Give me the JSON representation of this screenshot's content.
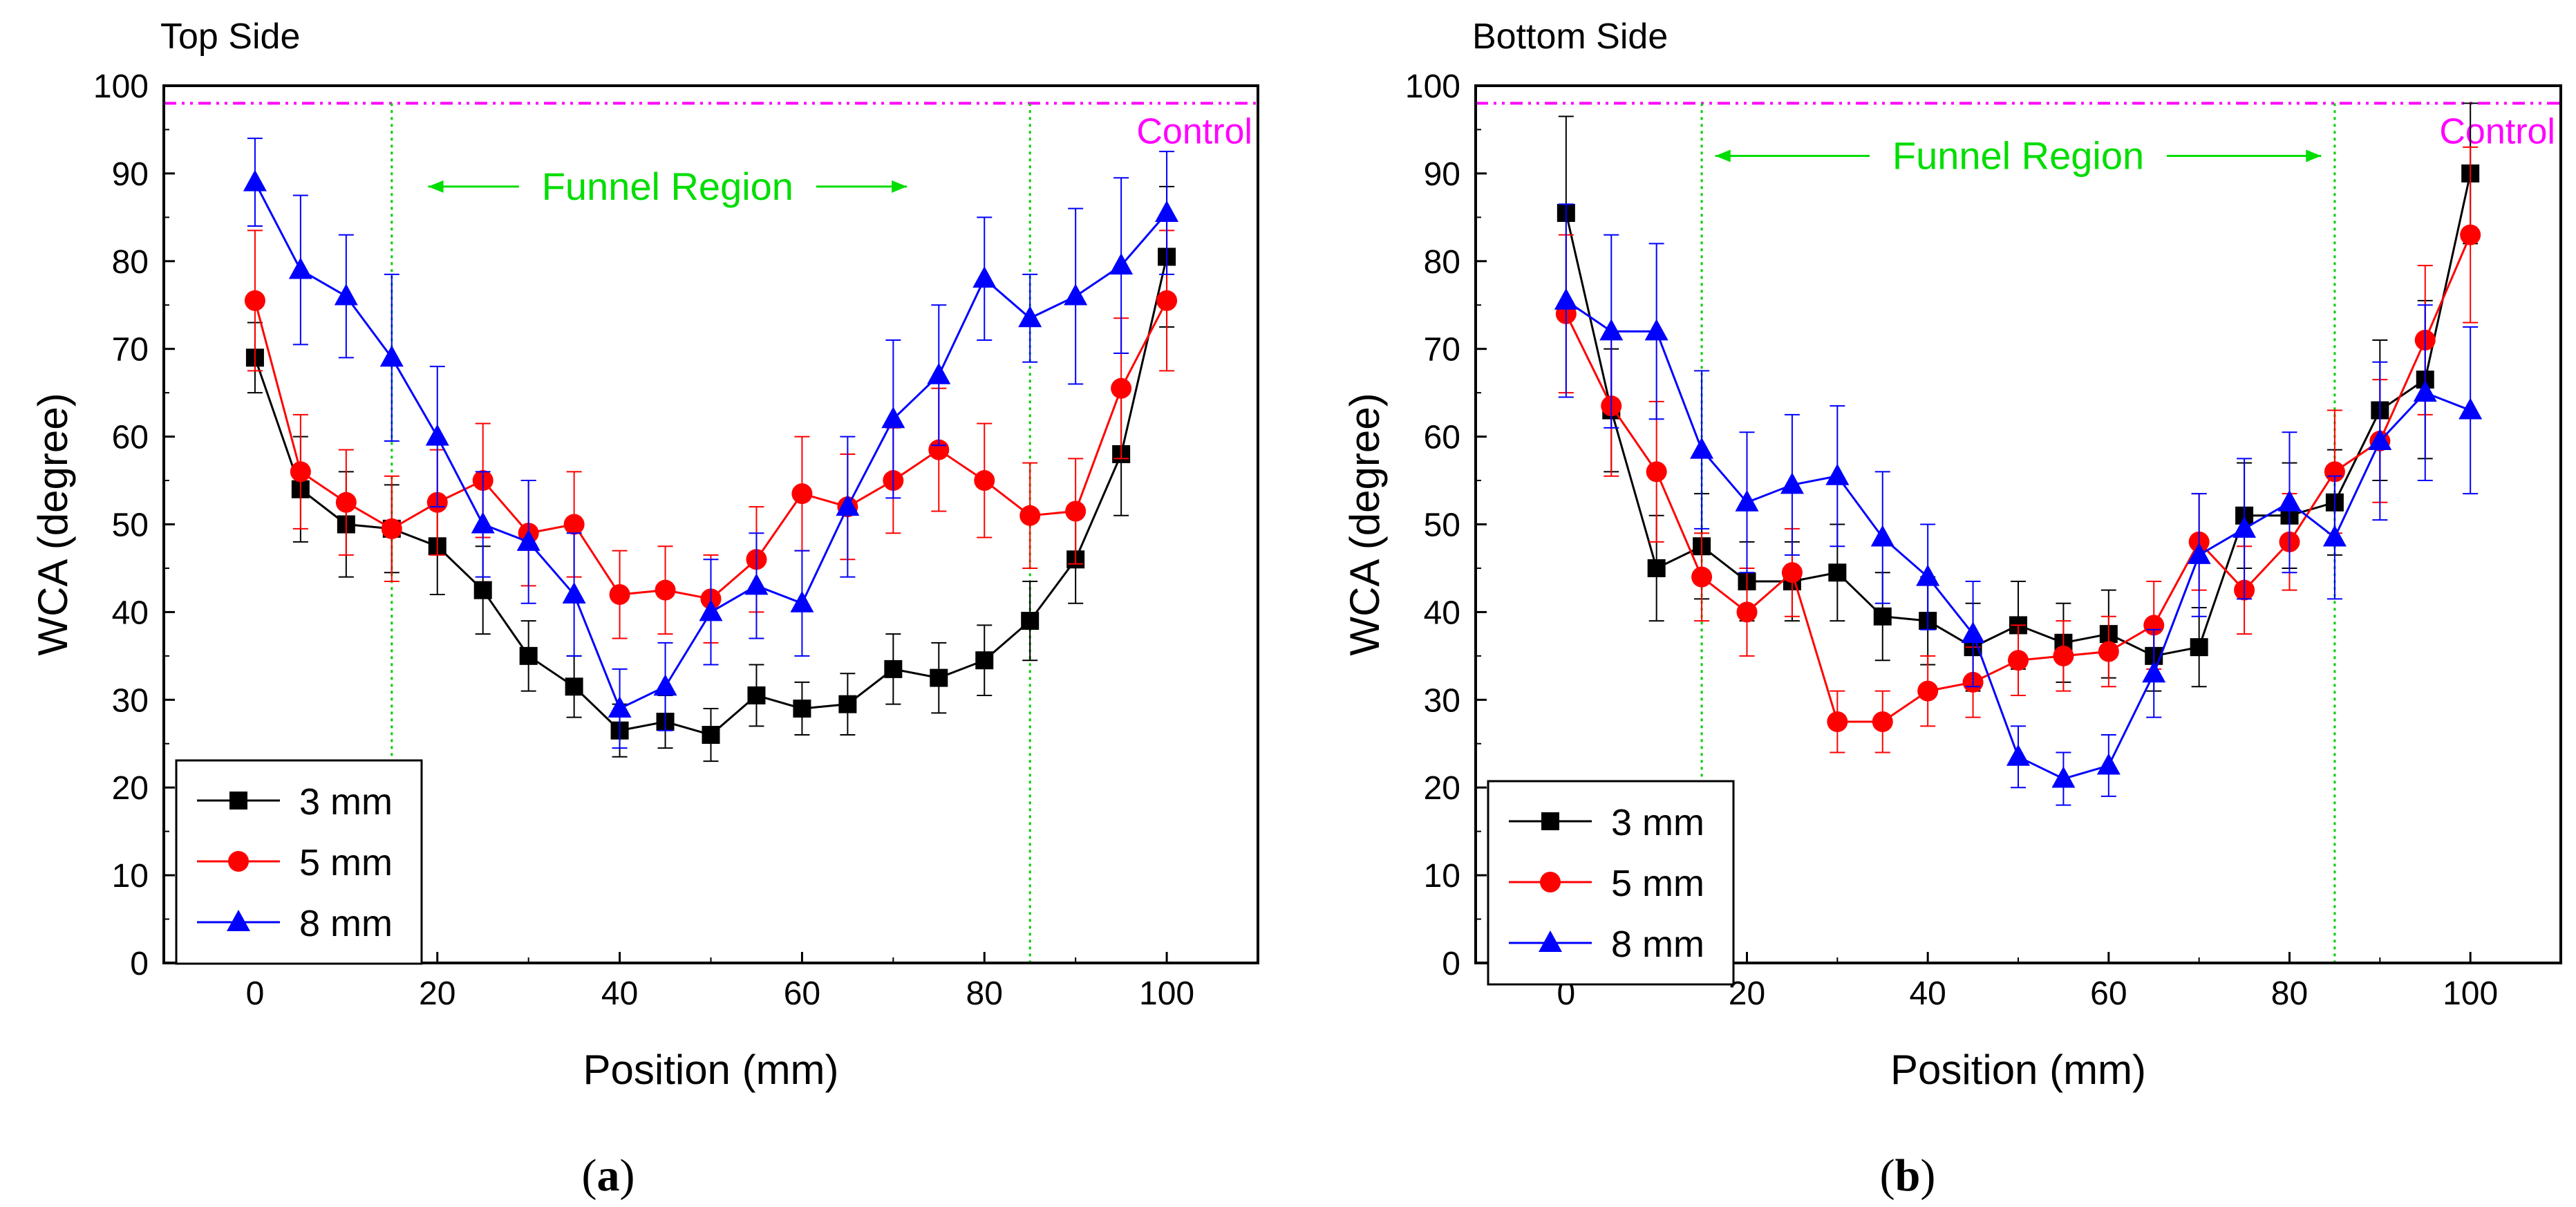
{
  "chart_data": [
    {
      "type": "line",
      "panel_title": "Top Side",
      "caption_letter": "a",
      "xlabel": "Position (mm)",
      "ylabel": "WCA (degree)",
      "xlim": [
        -10,
        110
      ],
      "ylim": [
        0,
        100
      ],
      "xticks": [
        0,
        20,
        40,
        60,
        80,
        100
      ],
      "yticks": [
        0,
        10,
        20,
        30,
        40,
        50,
        60,
        70,
        80,
        90,
        100
      ],
      "control": {
        "label": "Control",
        "value": 98
      },
      "region": {
        "label": "Funnel Region",
        "start": 15,
        "end": 85
      },
      "legend_position": "bottom-left",
      "x": [
        0,
        5,
        10,
        15,
        20,
        25,
        30,
        35,
        40,
        45,
        50,
        55,
        60,
        65,
        70,
        75,
        80,
        85,
        90,
        95,
        100
      ],
      "series": [
        {
          "name": "3 mm",
          "color": "#000000",
          "marker": "square",
          "values": [
            69,
            54,
            50,
            49.5,
            47.5,
            42.5,
            35,
            31.5,
            26.5,
            27.5,
            26,
            30.5,
            29,
            29.5,
            33.5,
            32.5,
            34.5,
            39,
            46,
            58,
            80.5
          ],
          "errors": [
            4,
            6,
            6,
            5,
            5.5,
            5,
            4,
            3.5,
            3,
            3,
            3,
            3.5,
            3,
            3.5,
            4,
            4,
            4,
            4.5,
            5,
            7,
            8
          ]
        },
        {
          "name": "5 mm",
          "color": "#ff0000",
          "marker": "circle",
          "values": [
            75.5,
            56,
            52.5,
            49.5,
            52.5,
            55,
            49,
            50,
            42,
            42.5,
            41.5,
            46,
            53.5,
            52,
            55,
            58.5,
            55,
            51,
            51.5,
            65.5,
            75.5
          ],
          "errors": [
            8,
            6.5,
            6,
            6,
            6,
            6.5,
            6,
            6,
            5,
            5,
            5,
            6,
            6.5,
            6,
            6,
            7,
            6.5,
            6,
            6,
            8,
            8
          ]
        },
        {
          "name": "8 mm",
          "color": "#0000ff",
          "marker": "triangle",
          "values": [
            89,
            79,
            76,
            69,
            60,
            50,
            48,
            42,
            29,
            31.5,
            40,
            43,
            41,
            52,
            62,
            67,
            78,
            73.5,
            76,
            79.5,
            85.5
          ],
          "errors": [
            5,
            8.5,
            7,
            9.5,
            8,
            6,
            7,
            7,
            4.5,
            5,
            6,
            6,
            6,
            8,
            9,
            8,
            7,
            5,
            10,
            10,
            7
          ]
        }
      ]
    },
    {
      "type": "line",
      "panel_title": "Bottom Side",
      "caption_letter": "b",
      "xlabel": "Position (mm)",
      "ylabel": "WCA (degree)",
      "xlim": [
        -10,
        110
      ],
      "ylim": [
        0,
        100
      ],
      "xticks": [
        0,
        20,
        40,
        60,
        80,
        100
      ],
      "yticks": [
        0,
        10,
        20,
        30,
        40,
        50,
        60,
        70,
        80,
        90,
        100
      ],
      "control": {
        "label": "Control",
        "value": 98
      },
      "region": {
        "label": "Funnel Region",
        "start": 15,
        "end": 85
      },
      "legend_position": "bottom-left",
      "x": [
        0,
        5,
        10,
        15,
        20,
        25,
        30,
        35,
        40,
        45,
        50,
        55,
        60,
        65,
        70,
        75,
        80,
        85,
        90,
        95,
        100
      ],
      "series": [
        {
          "name": "3 mm",
          "color": "#000000",
          "marker": "square",
          "values": [
            85.5,
            63,
            45,
            47.5,
            43.5,
            43.5,
            44.5,
            39.5,
            39,
            36,
            38.5,
            36.5,
            37.5,
            35,
            36,
            51,
            51,
            52.5,
            63,
            66.5,
            90
          ],
          "errors": [
            11,
            7,
            6,
            6,
            4.5,
            4.5,
            5.5,
            5,
            5,
            5,
            5,
            4.5,
            5,
            4,
            4.5,
            6,
            6,
            6,
            8,
            9,
            8
          ]
        },
        {
          "name": "5 mm",
          "color": "#ff0000",
          "marker": "circle",
          "values": [
            74,
            63.5,
            56,
            44,
            40,
            44.5,
            27.5,
            27.5,
            31,
            32,
            34.5,
            35,
            35.5,
            38.5,
            48,
            42.5,
            48,
            56,
            59.5,
            71,
            83
          ],
          "errors": [
            9,
            8,
            8,
            5,
            5,
            5,
            3.5,
            3.5,
            4,
            4,
            4,
            4,
            4,
            5,
            5.5,
            5,
            5.5,
            7,
            7,
            8.5,
            10
          ]
        },
        {
          "name": "8 mm",
          "color": "#0000ff",
          "marker": "triangle",
          "values": [
            75.5,
            72,
            72,
            58.5,
            52.5,
            54.5,
            55.5,
            48.5,
            44,
            37.5,
            23.5,
            21,
            22.5,
            33,
            46.5,
            49.5,
            52.5,
            48.5,
            59.5,
            65,
            63
          ],
          "errors": [
            11,
            11,
            10,
            9,
            8,
            8,
            8,
            7.5,
            6,
            6,
            3.5,
            3,
            3.5,
            5,
            7,
            8,
            8,
            7,
            9,
            10,
            9.5
          ]
        }
      ]
    }
  ]
}
